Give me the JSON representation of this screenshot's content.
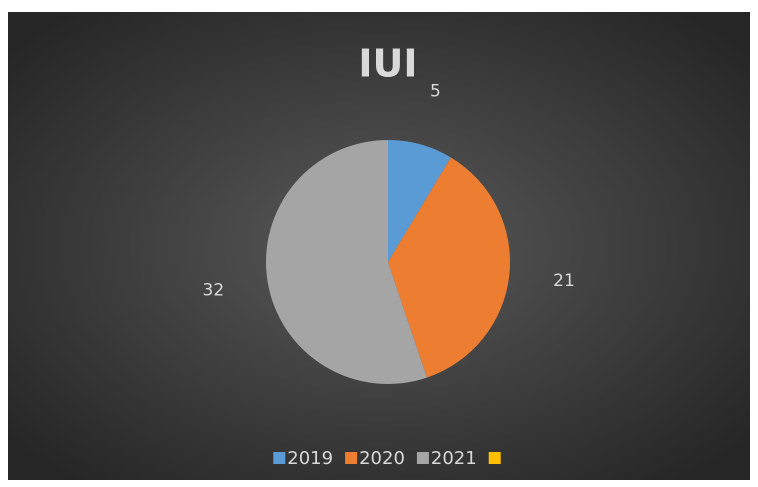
{
  "chart_data": {
    "type": "pie",
    "title": "IUI",
    "categories": [
      "2019",
      "2020",
      "2021",
      null
    ],
    "values": [
      5,
      21,
      32,
      null
    ],
    "colors": [
      "#5b9bd5",
      "#ed7d31",
      "#a5a5a5",
      "#ffc000"
    ],
    "legend": "bottom"
  }
}
